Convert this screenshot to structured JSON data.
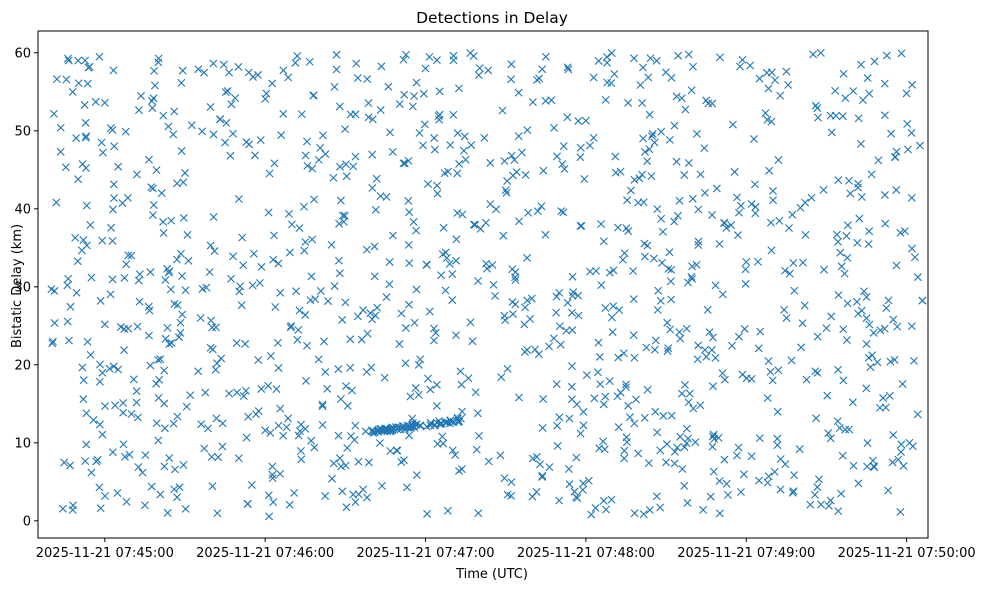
{
  "chart_data": {
    "type": "scatter",
    "title": "Detections in Delay",
    "xlabel": "Time (UTC)",
    "ylabel": "Bistatic Delay (km)",
    "x_ticks": [
      "2025-11-21 07:45:00",
      "2025-11-21 07:46:00",
      "2025-11-21 07:47:00",
      "2025-11-21 07:48:00",
      "2025-11-21 07:49:00",
      "2025-11-21 07:50:00"
    ],
    "xlim": [
      "2025-11-21 07:44:35",
      "2025-11-21 07:50:08"
    ],
    "y_ticks": [
      "0",
      "10",
      "20",
      "30",
      "40",
      "50",
      "60"
    ],
    "ylim": [
      -2.2,
      62.8
    ],
    "grid": false,
    "legend": "none",
    "marker": "x",
    "series": [
      {
        "color": "#1f77b4",
        "point_count": 1250,
        "x_range": [
          "2025-11-21 07:44:40",
          "2025-11-21 07:50:06"
        ],
        "y_range": [
          0.5,
          60
        ],
        "points": [
          [
            "2025-11-21 07:44:46",
            30.2
          ],
          [
            "2025-11-21 07:44:47",
            7.1
          ],
          [
            "2025-11-21 07:44:48",
            1.4
          ],
          [
            "2025-11-21 07:44:48",
            55.0
          ],
          [
            "2025-11-21 07:44:50",
            59.0
          ],
          [
            "2025-11-21 07:44:50",
            43.8
          ],
          [
            "2025-11-21 07:44:52",
            36.0
          ],
          [
            "2025-11-21 07:44:52",
            15.6
          ],
          [
            "2025-11-21 07:44:53",
            49.3
          ],
          [
            "2025-11-21 07:44:55",
            31.2
          ],
          [
            "2025-11-21 07:44:55",
            6.2
          ],
          [
            "2025-11-21 07:44:58",
            59.5
          ],
          [
            "2025-11-21 07:45:00",
            53.6
          ],
          [
            "2025-11-21 07:45:00",
            25.2
          ],
          [
            "2025-11-21 07:45:03",
            8.8
          ],
          [
            "2025-11-21 07:45:05",
            45.4
          ],
          [
            "2025-11-21 07:45:05",
            19.4
          ],
          [
            "2025-11-21 07:45:08",
            32.9
          ],
          [
            "2025-11-21 07:45:10",
            13.7
          ],
          [
            "2025-11-21 07:45:12",
            44.4
          ],
          [
            "2025-11-21 07:45:13",
            28.1
          ],
          [
            "2025-11-21 07:45:15",
            2.0
          ],
          [
            "2025-11-21 07:45:18",
            39.2
          ],
          [
            "2025-11-21 07:45:20",
            58.8
          ],
          [
            "2025-11-21 07:45:20",
            10.3
          ],
          [
            "2025-11-21 07:45:22",
            36.9
          ],
          [
            "2025-11-21 07:45:25",
            22.8
          ],
          [
            "2025-11-21 07:45:28",
            4.3
          ],
          [
            "2025-11-21 07:45:30",
            44.6
          ],
          [
            "2025-11-21 07:45:32",
            16.1
          ],
          [
            "2025-11-21 07:45:35",
            57.9
          ],
          [
            "2025-11-21 07:45:38",
            29.9
          ],
          [
            "2025-11-21 07:45:40",
            8.2
          ],
          [
            "2025-11-21 07:45:42",
            20.2
          ],
          [
            "2025-11-21 07:45:45",
            48.5
          ],
          [
            "2025-11-21 07:45:48",
            33.9
          ],
          [
            "2025-11-21 07:45:50",
            58.2
          ],
          [
            "2025-11-21 07:45:52",
            16.0
          ],
          [
            "2025-11-21 07:45:55",
            4.6
          ],
          [
            "2025-11-21 07:45:58",
            30.5
          ],
          [
            "2025-11-21 07:46:00",
            54.1
          ],
          [
            "2025-11-21 07:46:00",
            11.6
          ],
          [
            "2025-11-21 07:46:03",
            2.4
          ],
          [
            "2025-11-21 07:46:05",
            19.6
          ],
          [
            "2025-11-21 07:46:05",
            12.2
          ],
          [
            "2025-11-21 07:46:08",
            12.0
          ],
          [
            "2025-11-21 07:46:10",
            38.0
          ],
          [
            "2025-11-21 07:46:12",
            59.6
          ],
          [
            "2025-11-21 07:46:13",
            11.5
          ],
          [
            "2025-11-21 07:46:15",
            11.8
          ],
          [
            "2025-11-21 07:46:15",
            26.4
          ],
          [
            "2025-11-21 07:46:18",
            54.5
          ],
          [
            "2025-11-21 07:46:20",
            20.7
          ],
          [
            "2025-11-21 07:46:22",
            23.0
          ],
          [
            "2025-11-21 07:46:25",
            5.4
          ],
          [
            "2025-11-21 07:46:28",
            45.4
          ],
          [
            "2025-11-21 07:46:30",
            28.0
          ],
          [
            "2025-11-21 07:46:32",
            52.1
          ],
          [
            "2025-11-21 07:46:35",
            3.4
          ],
          [
            "2025-11-21 07:46:38",
            19.1
          ],
          [
            "2025-11-21 07:46:40",
            11.6
          ],
          [
            "2025-11-21 07:46:42",
            11.5
          ],
          [
            "2025-11-21 07:46:45",
            11.7
          ],
          [
            "2025-11-21 07:46:48",
            11.9
          ],
          [
            "2025-11-21 07:46:50",
            12.0
          ],
          [
            "2025-11-21 07:46:52",
            12.1
          ],
          [
            "2025-11-21 07:46:55",
            12.2
          ],
          [
            "2025-11-21 07:46:58",
            20.7
          ],
          [
            "2025-11-21 07:47:00",
            58.0
          ],
          [
            "2025-11-21 07:47:02",
            12.5
          ],
          [
            "2025-11-21 07:47:05",
            12.8
          ],
          [
            "2025-11-21 07:47:08",
            33.7
          ],
          [
            "2025-11-21 07:47:10",
            28.3
          ],
          [
            "2025-11-21 07:47:12",
            13.2
          ],
          [
            "2025-11-21 07:47:15",
            46.3
          ],
          [
            "2025-11-21 07:47:18",
            59.6
          ],
          [
            "2025-11-21 07:47:20",
            10.9
          ],
          [
            "2025-11-21 07:47:22",
            49.1
          ],
          [
            "2025-11-21 07:47:25",
            32.8
          ],
          [
            "2025-11-21 07:47:28",
            8.4
          ],
          [
            "2025-11-21 07:47:30",
            42.4
          ],
          [
            "2025-11-21 07:47:32",
            56.6
          ],
          [
            "2025-11-21 07:47:35",
            38.4
          ],
          [
            "2025-11-21 07:47:38",
            21.9
          ],
          [
            "2025-11-21 07:47:40",
            3.1
          ],
          [
            "2025-11-21 07:47:42",
            39.7
          ],
          [
            "2025-11-21 07:47:45",
            59.5
          ],
          [
            "2025-11-21 07:47:48",
            23.4
          ],
          [
            "2025-11-21 07:47:50",
            2.6
          ],
          [
            "2025-11-21 07:47:52",
            45.1
          ],
          [
            "2025-11-21 07:47:55",
            31.3
          ],
          [
            "2025-11-21 07:47:58",
            11.2
          ],
          [
            "2025-11-21 07:48:00",
            51.3
          ],
          [
            "2025-11-21 07:48:02",
            0.8
          ],
          [
            "2025-11-21 07:48:05",
            9.3
          ],
          [
            "2025-11-21 07:48:08",
            56.2
          ],
          [
            "2025-11-21 07:48:10",
            24.2
          ],
          [
            "2025-11-21 07:48:12",
            37.6
          ],
          [
            "2025-11-21 07:48:15",
            17.5
          ],
          [
            "2025-11-21 07:48:18",
            59.3
          ],
          [
            "2025-11-21 07:48:20",
            43.9
          ],
          [
            "2025-11-21 07:48:22",
            13.2
          ],
          [
            "2025-11-21 07:48:25",
            49.6
          ],
          [
            "2025-11-21 07:48:28",
            28.2
          ],
          [
            "2025-11-21 07:48:30",
            7.5
          ],
          [
            "2025-11-21 07:48:32",
            56.8
          ],
          [
            "2025-11-21 07:48:35",
            24.2
          ],
          [
            "2025-11-21 07:48:38",
            2.3
          ],
          [
            "2025-11-21 07:48:40",
            41.3
          ],
          [
            "2025-11-21 07:48:42",
            22.5
          ],
          [
            "2025-11-21 07:48:45",
            53.9
          ],
          [
            "2025-11-21 07:48:48",
            10.5
          ],
          [
            "2025-11-21 07:48:50",
            35.5
          ],
          [
            "2025-11-21 07:48:52",
            18.1
          ],
          [
            "2025-11-21 07:48:55",
            50.8
          ],
          [
            "2025-11-21 07:48:58",
            3.7
          ],
          [
            "2025-11-21 07:49:00",
            33.2
          ],
          [
            "2025-11-21 07:49:02",
            18.2
          ],
          [
            "2025-11-21 07:49:05",
            56.7
          ],
          [
            "2025-11-21 07:49:08",
            4.9
          ],
          [
            "2025-11-21 07:49:10",
            42.3
          ],
          [
            "2025-11-21 07:49:12",
            19.3
          ],
          [
            "2025-11-21 07:49:15",
            57.6
          ],
          [
            "2025-11-21 07:49:18",
            29.5
          ],
          [
            "2025-11-21 07:49:20",
            9.2
          ],
          [
            "2025-11-21 07:49:22",
            40.8
          ],
          [
            "2025-11-21 07:49:25",
            59.8
          ],
          [
            "2025-11-21 07:49:28",
            2.1
          ],
          [
            "2025-11-21 07:49:30",
            24.7
          ],
          [
            "2025-11-21 07:49:32",
            49.8
          ],
          [
            "2025-11-21 07:49:35",
            11.9
          ],
          [
            "2025-11-21 07:49:38",
            37.9
          ],
          [
            "2025-11-21 07:49:40",
            55.1
          ],
          [
            "2025-11-21 07:49:42",
            4.8
          ],
          [
            "2025-11-21 07:49:45",
            28.7
          ],
          [
            "2025-11-21 07:49:48",
            58.9
          ],
          [
            "2025-11-21 07:49:50",
            14.5
          ],
          [
            "2025-11-21 07:49:52",
            38.1
          ],
          [
            "2025-11-21 07:49:55",
            25.8
          ],
          [
            "2025-11-21 07:49:58",
            9.8
          ],
          [
            "2025-11-21 07:50:00",
            54.8
          ],
          [
            "2025-11-21 07:50:02",
            34.9
          ],
          [
            "2025-11-21 07:50:05",
            48.1
          ]
        ]
      }
    ]
  }
}
